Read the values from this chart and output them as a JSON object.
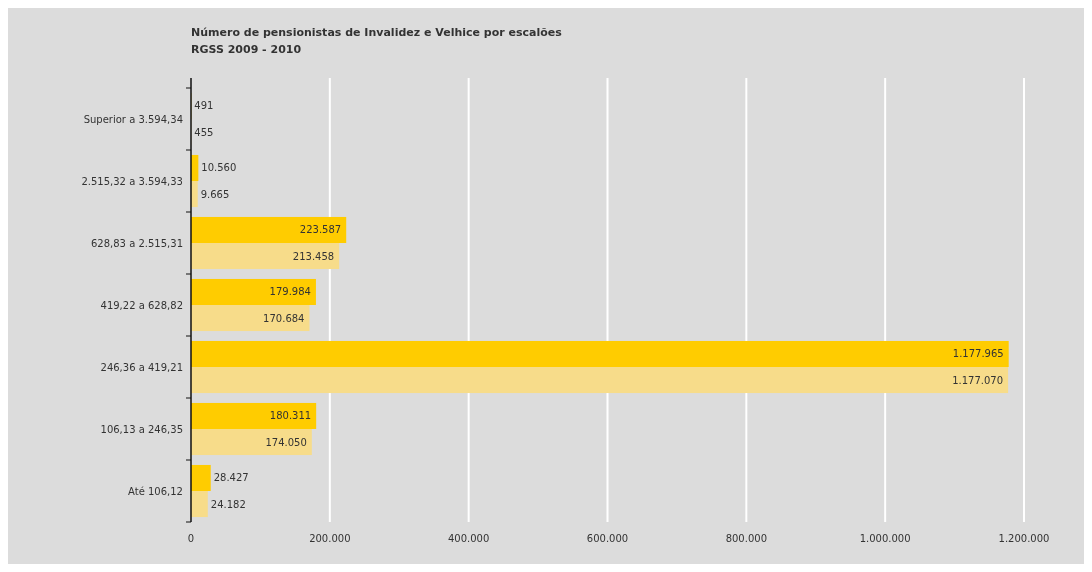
{
  "chart_data": {
    "type": "bar",
    "orientation": "horizontal",
    "title": "Número de pensionistas de Invalidez e Velhice por escalões",
    "subtitle": "RGSS 2009 - 2010",
    "categories": [
      "Superior a 3.594,34",
      "2.515,32 a 3.594,33",
      "628,83 a 2.515,31",
      "419,22 a 628,82",
      "246,36 a 419,21",
      "106,13 a 246,35",
      "Até 106,12"
    ],
    "series": [
      {
        "color": "#ffcc00",
        "values": [
          491,
          10560,
          223587,
          179984,
          1177965,
          180311,
          28427
        ],
        "value_labels": [
          "491",
          "10.560",
          "223.587",
          "179.984",
          "1.177.965",
          "180.311",
          "28.427"
        ]
      },
      {
        "color": "#f7dc8a",
        "values": [
          455,
          9665,
          213458,
          170684,
          1177070,
          174050,
          24182
        ],
        "value_labels": [
          "455",
          "9.665",
          "213.458",
          "170.684",
          "1.177.070",
          "174.050",
          "24.182"
        ]
      }
    ],
    "xlim": [
      0,
      1200000
    ],
    "xticks": [
      0,
      {
        "value": 200000,
        "label": "200.000"
      },
      {
        "value": 400000,
        "label": "400.000"
      },
      {
        "value": 600000,
        "label": "600.000"
      },
      {
        "value": 800000,
        "label": "800.000"
      },
      {
        "value": 1000000,
        "label": "1.000.000"
      },
      {
        "value": 1200000,
        "label": "1.200.000"
      }
    ],
    "grid": "x"
  }
}
